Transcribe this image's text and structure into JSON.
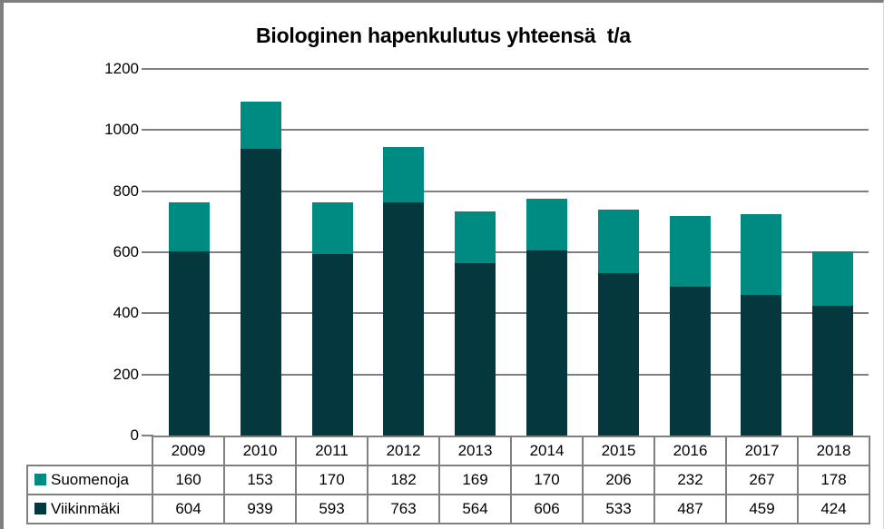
{
  "chart_data": {
    "type": "bar",
    "stacked": true,
    "title": "Biologinen hapenkulutus yhteensä  t/a",
    "categories": [
      "2009",
      "2010",
      "2011",
      "2012",
      "2013",
      "2014",
      "2015",
      "2016",
      "2017",
      "2018"
    ],
    "series": [
      {
        "name": "Suomenoja",
        "color": "#008B82",
        "values": [
          160,
          153,
          170,
          182,
          169,
          170,
          206,
          232,
          267,
          178
        ]
      },
      {
        "name": "Viikinmäki",
        "color": "#04383E",
        "values": [
          604,
          939,
          593,
          763,
          564,
          606,
          533,
          487,
          459,
          424
        ]
      }
    ],
    "stack_order_bottom_to_top": [
      "Viikinmäki",
      "Suomenoja"
    ],
    "ylim": [
      0,
      1200
    ],
    "yticks": [
      0,
      200,
      400,
      600,
      800,
      1000,
      1200
    ],
    "grid": "horizontal",
    "legend_position": "table-left",
    "colors": {
      "gridline": "#808080",
      "axis_tick": "#808080",
      "table_border": "#808080",
      "title_text": "#000000",
      "label_text": "#000000",
      "background": "#ffffff",
      "frame_border": "#7f7f7f"
    }
  }
}
